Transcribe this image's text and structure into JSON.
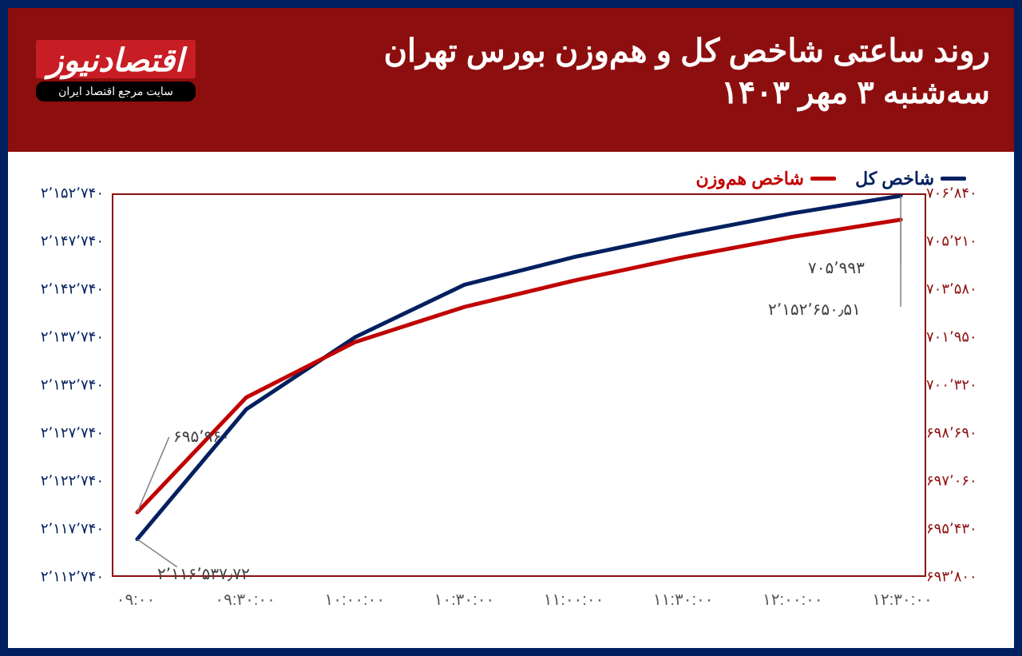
{
  "header": {
    "title_line1": "روند ساعتی شاخص کل و هم‌وزن بورس تهران",
    "title_line2": "سه‌شنبه ۳ مهر ۱۴۰۳",
    "header_bg": "#8d0e0e"
  },
  "logo": {
    "main_text": "اقتصادنیوز",
    "sub_text": "سایت مرجع اقتصاد ایران"
  },
  "legend": {
    "series1_label": "شاخص کل",
    "series1_color": "#002060",
    "series2_label": "شاخص هم‌وزن",
    "series2_color": "#c00000"
  },
  "chart": {
    "type": "line",
    "plot_border_color": "#8d0e0e",
    "line_width": 5,
    "x_categories": [
      "۰۹:۰۰",
      "۰۹:۳۰:۰۰",
      "۱۰:۰۰:۰۰",
      "۱۰:۳۰:۰۰",
      "۱۱:۰۰:۰۰",
      "۱۱:۳۰:۰۰",
      "۱۲:۰۰:۰۰",
      "۱۲:۳۰:۰۰"
    ],
    "left_axis": {
      "min": 2112740,
      "max": 2152740,
      "ticks": [
        "۲٬۱۱۲٬۷۴۰",
        "۲٬۱۱۷٬۷۴۰",
        "۲٬۱۲۲٬۷۴۰",
        "۲٬۱۲۷٬۷۴۰",
        "۲٬۱۳۲٬۷۴۰",
        "۲٬۱۳۷٬۷۴۰",
        "۲٬۱۴۲٬۷۴۰",
        "۲٬۱۴۷٬۷۴۰",
        "۲٬۱۵۲٬۷۴۰"
      ],
      "tick_color": "#002060",
      "tick_fontsize": 18
    },
    "right_axis": {
      "min": 693800,
      "max": 706840,
      "ticks": [
        "۶۹۳٬۸۰۰",
        "۶۹۵٬۴۳۰",
        "۶۹۷٬۰۶۰",
        "۶۹۸٬۶۹۰",
        "۷۰۰٬۳۲۰",
        "۷۰۱٬۹۵۰",
        "۷۰۳٬۵۸۰",
        "۷۰۵٬۲۱۰",
        "۷۰۶٬۸۴۰"
      ],
      "tick_color": "#8d0e0e",
      "tick_fontsize": 18
    },
    "series_total": {
      "name": "شاخص کل",
      "color": "#002060",
      "axis": "left",
      "values": [
        2116538,
        2130200,
        2137800,
        2143300,
        2146200,
        2148600,
        2150800,
        2152650
      ]
    },
    "series_equal": {
      "name": "شاخص هم‌وزن",
      "color": "#c00000",
      "axis": "right",
      "values": [
        695960,
        699900,
        701800,
        703000,
        703900,
        704700,
        705400,
        705993
      ]
    },
    "data_labels": {
      "start_equal": "۶۹۵٬۹۶۰",
      "start_total": "۲٬۱۱۶٬۵۳۷٫۷۲",
      "end_equal": "۷۰۵٬۹۹۳",
      "end_total": "۲٬۱۵۲٬۶۵۰٫۵۱"
    },
    "callout_line_color": "#7f7f7f",
    "xlabel_color": "#595959",
    "xlabel_fontsize": 20
  },
  "frame_color": "#002060"
}
